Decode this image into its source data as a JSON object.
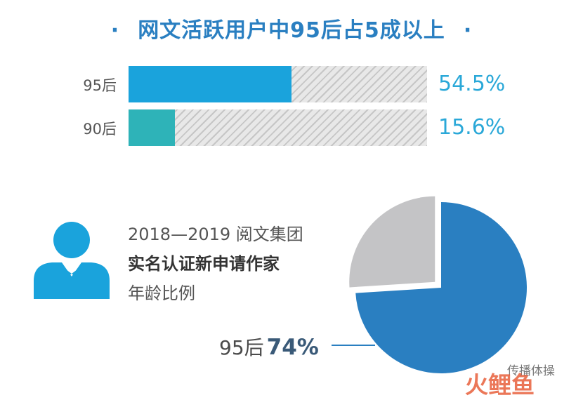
{
  "chart_data": [
    {
      "type": "bar",
      "title": "网文活跃用户中95后占5成以上",
      "categories": [
        "95后",
        "90后"
      ],
      "values": [
        54.5,
        15.6
      ],
      "value_labels": [
        "54.5%",
        "15.6%"
      ],
      "colors": [
        "#1aa3dc",
        "#2eb3b8"
      ],
      "track_color": "#d6d6d6",
      "ylim": [
        0,
        100
      ]
    },
    {
      "type": "pie",
      "title_lines": [
        "2018—2019 阅文集团",
        "实名认证新申请作家",
        "年龄比例"
      ],
      "slices": [
        {
          "label": "95后",
          "value": 74,
          "color": "#2a7fc1"
        },
        {
          "value": 26,
          "color": "#c4c4c6"
        }
      ],
      "annotation": {
        "label": "95后",
        "value_text": "74%"
      }
    }
  ],
  "title_dot": "·",
  "watermark": {
    "text": "传播体操",
    "logo": "火鲤鱼"
  }
}
